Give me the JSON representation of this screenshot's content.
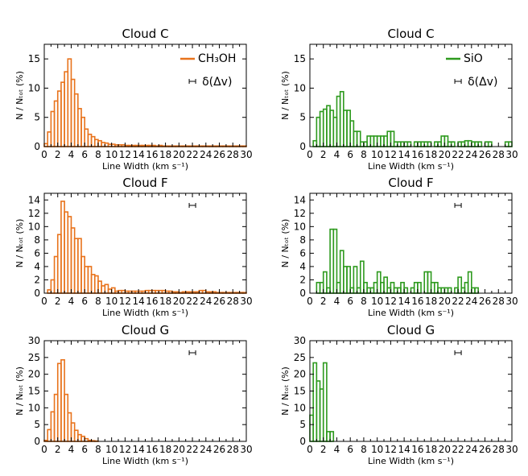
{
  "colors": {
    "ch3oh": "#e8731c",
    "sio": "#2e9a1e",
    "axis": "#000000"
  },
  "chart_data": [
    {
      "type": "bar",
      "title": "Cloud C",
      "xlabel": "Line Width (km s⁻¹)",
      "ylabel": "N / Nₜₒₜ (%)",
      "xlim": [
        0,
        30
      ],
      "ylim": [
        0,
        17.5
      ],
      "xticks": [
        0,
        2,
        4,
        6,
        8,
        10,
        12,
        14,
        16,
        18,
        20,
        22,
        24,
        26,
        28,
        30
      ],
      "yticks": [
        0,
        5,
        10,
        15
      ],
      "bin_width": 0.5,
      "legend": {
        "label": "CH₃OH",
        "res_label": "δ(Δv)",
        "position": "top-right"
      },
      "series": [
        {
          "name": "CH₃OH",
          "color_key": "ch3oh",
          "values": [
            0.5,
            2.5,
            6.0,
            7.8,
            9.5,
            11.0,
            12.8,
            15.0,
            11.5,
            9.0,
            6.5,
            5.0,
            3.0,
            2.1,
            1.7,
            1.2,
            1.0,
            0.7,
            0.6,
            0.4,
            0.4,
            0.3,
            0.3,
            0.3,
            0.2,
            0.2,
            0.2,
            0.2,
            0.2,
            0.2,
            0.2,
            0.2,
            0.2,
            0.1,
            0.2,
            0.1,
            0.1,
            0.1,
            0.1,
            0.1,
            0.1,
            0.1,
            0.1,
            0.1,
            0.1,
            0.1,
            0.1,
            0.1,
            0.1,
            0.1,
            0.1,
            0.1,
            0.1,
            0.1,
            0.1,
            0.1,
            0.1,
            0.1,
            0.1,
            0.1
          ]
        }
      ]
    },
    {
      "type": "bar",
      "title": "Cloud C",
      "xlabel": "Line Width (km s⁻¹)",
      "ylabel": "N / Nₜₒₜ (%)",
      "xlim": [
        0,
        30
      ],
      "ylim": [
        0,
        17.5
      ],
      "xticks": [
        0,
        2,
        4,
        6,
        8,
        10,
        12,
        14,
        16,
        18,
        20,
        22,
        24,
        26,
        28,
        30
      ],
      "yticks": [
        0,
        5,
        10,
        15
      ],
      "bin_width": 0.5,
      "legend": {
        "label": "SiO",
        "res_label": "δ(Δv)",
        "position": "top-right"
      },
      "series": [
        {
          "name": "SiO",
          "color_key": "sio",
          "values": [
            0,
            1.0,
            5.0,
            6.0,
            6.4,
            7.0,
            6.2,
            5.0,
            8.6,
            9.4,
            6.2,
            6.2,
            4.4,
            2.6,
            2.6,
            0.8,
            0.8,
            1.8,
            1.8,
            1.8,
            1.8,
            1.8,
            1.8,
            2.6,
            2.6,
            0.8,
            0.8,
            0.8,
            0.8,
            0.8,
            0,
            0.8,
            0.8,
            0.8,
            0.8,
            0.8,
            0,
            0.8,
            0.8,
            1.8,
            1.8,
            0.8,
            0.8,
            0,
            0.8,
            0.8,
            1.0,
            1.0,
            0.8,
            0.8,
            0.8,
            0,
            0.8,
            0.8,
            0,
            0,
            0,
            0,
            0.8,
            0.8
          ]
        }
      ]
    },
    {
      "type": "bar",
      "title": "Cloud F",
      "xlabel": "Line Width (km s⁻¹)",
      "ylabel": "N / Nₜₒₜ (%)",
      "xlim": [
        0,
        30
      ],
      "ylim": [
        0,
        15
      ],
      "xticks": [
        0,
        2,
        4,
        6,
        8,
        10,
        12,
        14,
        16,
        18,
        20,
        22,
        24,
        26,
        28,
        30
      ],
      "yticks": [
        0,
        2,
        4,
        6,
        8,
        10,
        12,
        14
      ],
      "bin_width": 0.5,
      "legend": {
        "label": "",
        "res_label": "",
        "position": "top-right"
      },
      "series": [
        {
          "name": "",
          "color_key": "ch3oh",
          "values": [
            0,
            0.5,
            2.0,
            5.5,
            8.8,
            13.8,
            12.2,
            11.5,
            9.8,
            8.2,
            8.2,
            5.5,
            4.0,
            4.0,
            2.8,
            2.6,
            1.8,
            1.1,
            1.3,
            0.6,
            0.8,
            0.3,
            0.4,
            0.4,
            0.3,
            0.3,
            0.3,
            0.3,
            0.3,
            0.3,
            0.4,
            0.4,
            0.4,
            0.4,
            0.4,
            0.4,
            0.3,
            0.3,
            0.2,
            0.2,
            0.1,
            0.2,
            0.2,
            0.2,
            0.2,
            0.2,
            0.4,
            0.4,
            0.2,
            0.2,
            0.2,
            0.1,
            0.1,
            0.1,
            0.1,
            0.1,
            0.1,
            0.1,
            0.1,
            0.1
          ]
        }
      ]
    },
    {
      "type": "bar",
      "title": "Cloud F",
      "xlabel": "Line Width (km s⁻¹)",
      "ylabel": "N / Nₜₒₜ (%)",
      "xlim": [
        0,
        30
      ],
      "ylim": [
        0,
        15
      ],
      "xticks": [
        0,
        2,
        4,
        6,
        8,
        10,
        12,
        14,
        16,
        18,
        20,
        22,
        24,
        26,
        28,
        30
      ],
      "yticks": [
        0,
        2,
        4,
        6,
        8,
        10,
        12,
        14
      ],
      "bin_width": 0.5,
      "legend": {
        "label": "",
        "res_label": "",
        "position": "top-right"
      },
      "series": [
        {
          "name": "",
          "color_key": "sio",
          "values": [
            0,
            0,
            1.6,
            1.6,
            3.2,
            0.8,
            9.6,
            9.6,
            1.6,
            6.4,
            4.0,
            4.0,
            0.8,
            4.0,
            0.8,
            4.8,
            1.6,
            0.8,
            0.8,
            1.6,
            3.2,
            1.6,
            2.4,
            0.8,
            1.6,
            0.8,
            0.8,
            1.6,
            0.8,
            0,
            0.8,
            1.6,
            1.6,
            0,
            3.2,
            3.2,
            1.6,
            1.6,
            0.8,
            0.8,
            0.8,
            0.8,
            0,
            0.8,
            2.4,
            0.8,
            1.6,
            3.2,
            0.8,
            0.8,
            0,
            0,
            0,
            0,
            0,
            0,
            0,
            0,
            0,
            0
          ]
        }
      ]
    },
    {
      "type": "bar",
      "title": "Cloud G",
      "xlabel": "Line Width (km s⁻¹)",
      "ylabel": "N / Nₜₒₜ (%)",
      "xlim": [
        0,
        30
      ],
      "ylim": [
        0,
        30
      ],
      "xticks": [
        0,
        2,
        4,
        6,
        8,
        10,
        12,
        14,
        16,
        18,
        20,
        22,
        24,
        26,
        28,
        30
      ],
      "yticks": [
        0,
        5,
        10,
        15,
        20,
        25,
        30
      ],
      "bin_width": 0.5,
      "legend": {
        "label": "",
        "res_label": "",
        "position": "top-right"
      },
      "series": [
        {
          "name": "",
          "color_key": "ch3oh",
          "values": [
            0.3,
            3.5,
            8.8,
            14.0,
            23.2,
            24.3,
            14.0,
            8.5,
            5.5,
            3.3,
            2.0,
            1.5,
            0.8,
            0.3,
            0.2,
            0.1,
            0,
            0,
            0,
            0,
            0,
            0,
            0,
            0,
            0,
            0,
            0,
            0,
            0,
            0,
            0,
            0,
            0,
            0,
            0,
            0,
            0,
            0,
            0,
            0,
            0,
            0,
            0,
            0,
            0,
            0,
            0,
            0,
            0,
            0,
            0,
            0,
            0,
            0,
            0,
            0,
            0,
            0,
            0,
            0
          ]
        }
      ]
    },
    {
      "type": "bar",
      "title": "Cloud G",
      "xlabel": "Line Width (km s⁻¹)",
      "ylabel": "N / Nₜₒₜ (%)",
      "xlim": [
        0,
        30
      ],
      "ylim": [
        0,
        30
      ],
      "xticks": [
        0,
        2,
        4,
        6,
        8,
        10,
        12,
        14,
        16,
        18,
        20,
        22,
        24,
        26,
        28,
        30
      ],
      "yticks": [
        0,
        5,
        10,
        15,
        20,
        25,
        30
      ],
      "bin_width": 0.5,
      "legend": {
        "label": "",
        "res_label": "",
        "position": "top-right"
      },
      "series": [
        {
          "name": "",
          "color_key": "sio",
          "values": [
            7.8,
            23.4,
            18.0,
            15.6,
            23.4,
            2.9,
            2.9,
            0,
            0,
            0,
            0,
            0,
            0,
            0,
            0,
            0,
            0,
            0,
            0,
            0,
            0,
            0,
            0,
            0,
            0,
            0,
            0,
            0,
            0,
            0,
            0,
            0,
            0,
            0,
            0,
            0,
            0,
            0,
            0,
            0,
            0,
            0,
            0,
            0,
            0,
            0,
            0,
            0,
            0,
            0,
            0,
            0,
            0,
            0,
            0,
            0,
            0,
            0,
            0,
            0
          ]
        }
      ]
    }
  ]
}
